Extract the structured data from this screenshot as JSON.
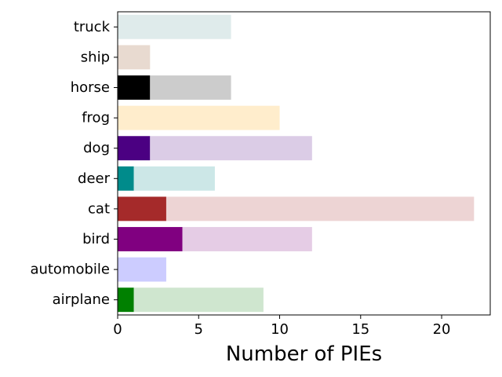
{
  "chart_data": {
    "type": "bar",
    "orientation": "horizontal",
    "stacked": true,
    "categories": [
      "airplane",
      "automobile",
      "bird",
      "cat",
      "deer",
      "dog",
      "frog",
      "horse",
      "ship",
      "truck"
    ],
    "series": [
      {
        "values": [
          1,
          0,
          4,
          3,
          1,
          2,
          0,
          2,
          0,
          0
        ],
        "colors": [
          "#008000",
          "#0000ff",
          "#800080",
          "#a52a2a",
          "#008b8b",
          "#4b0082",
          "#ffa500",
          "#000000",
          "#8b4513",
          "#5f9ea0"
        ]
      },
      {
        "values": [
          8,
          3,
          8,
          19,
          5,
          10,
          10,
          5,
          2,
          7
        ],
        "colors": [
          "#cfe6cf",
          "#ccccff",
          "#e5cce5",
          "#edd4d4",
          "#cce7e7",
          "#dbcce6",
          "#ffedcc",
          "#cccccc",
          "#e8dad0",
          "#dfebeb"
        ]
      }
    ],
    "xlabel": "Number of PIEs",
    "ylabel": "",
    "title": "",
    "xlim": [
      0,
      23
    ],
    "xticks": [
      0,
      5,
      10,
      15,
      20
    ],
    "grid": false,
    "legend": "none"
  }
}
